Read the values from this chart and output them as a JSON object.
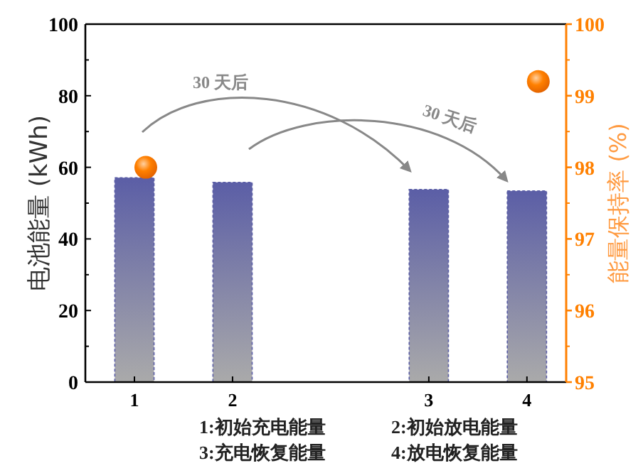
{
  "chart_data": {
    "type": "bar",
    "ylabel": "电池能量 (kWh)",
    "y2label": "能量保持率 (%)",
    "categories": [
      "1",
      "2",
      null,
      "3",
      "4"
    ],
    "ylim": [
      0,
      100
    ],
    "yticks": [
      0,
      20,
      40,
      60,
      80,
      100
    ],
    "y2lim": [
      95,
      100
    ],
    "y2ticks": [
      95,
      96,
      97,
      98,
      99,
      100
    ],
    "series": [
      {
        "values": [
          57.1,
          55.8,
          null,
          53.8,
          53.4
        ],
        "color": "#5b5ea6"
      },
      {
        "type": "scatter",
        "axis": "y2",
        "marker": "circle",
        "x": [
          "1",
          "4"
        ],
        "values": [
          98.0,
          99.2
        ],
        "color": "#ff8000"
      }
    ],
    "annotations": [
      "30 天后",
      "30 天后",
      "1:初始充电能量",
      "2:初始放电能量",
      "3:充电恢复能量",
      "4:放电恢复能量"
    ]
  }
}
